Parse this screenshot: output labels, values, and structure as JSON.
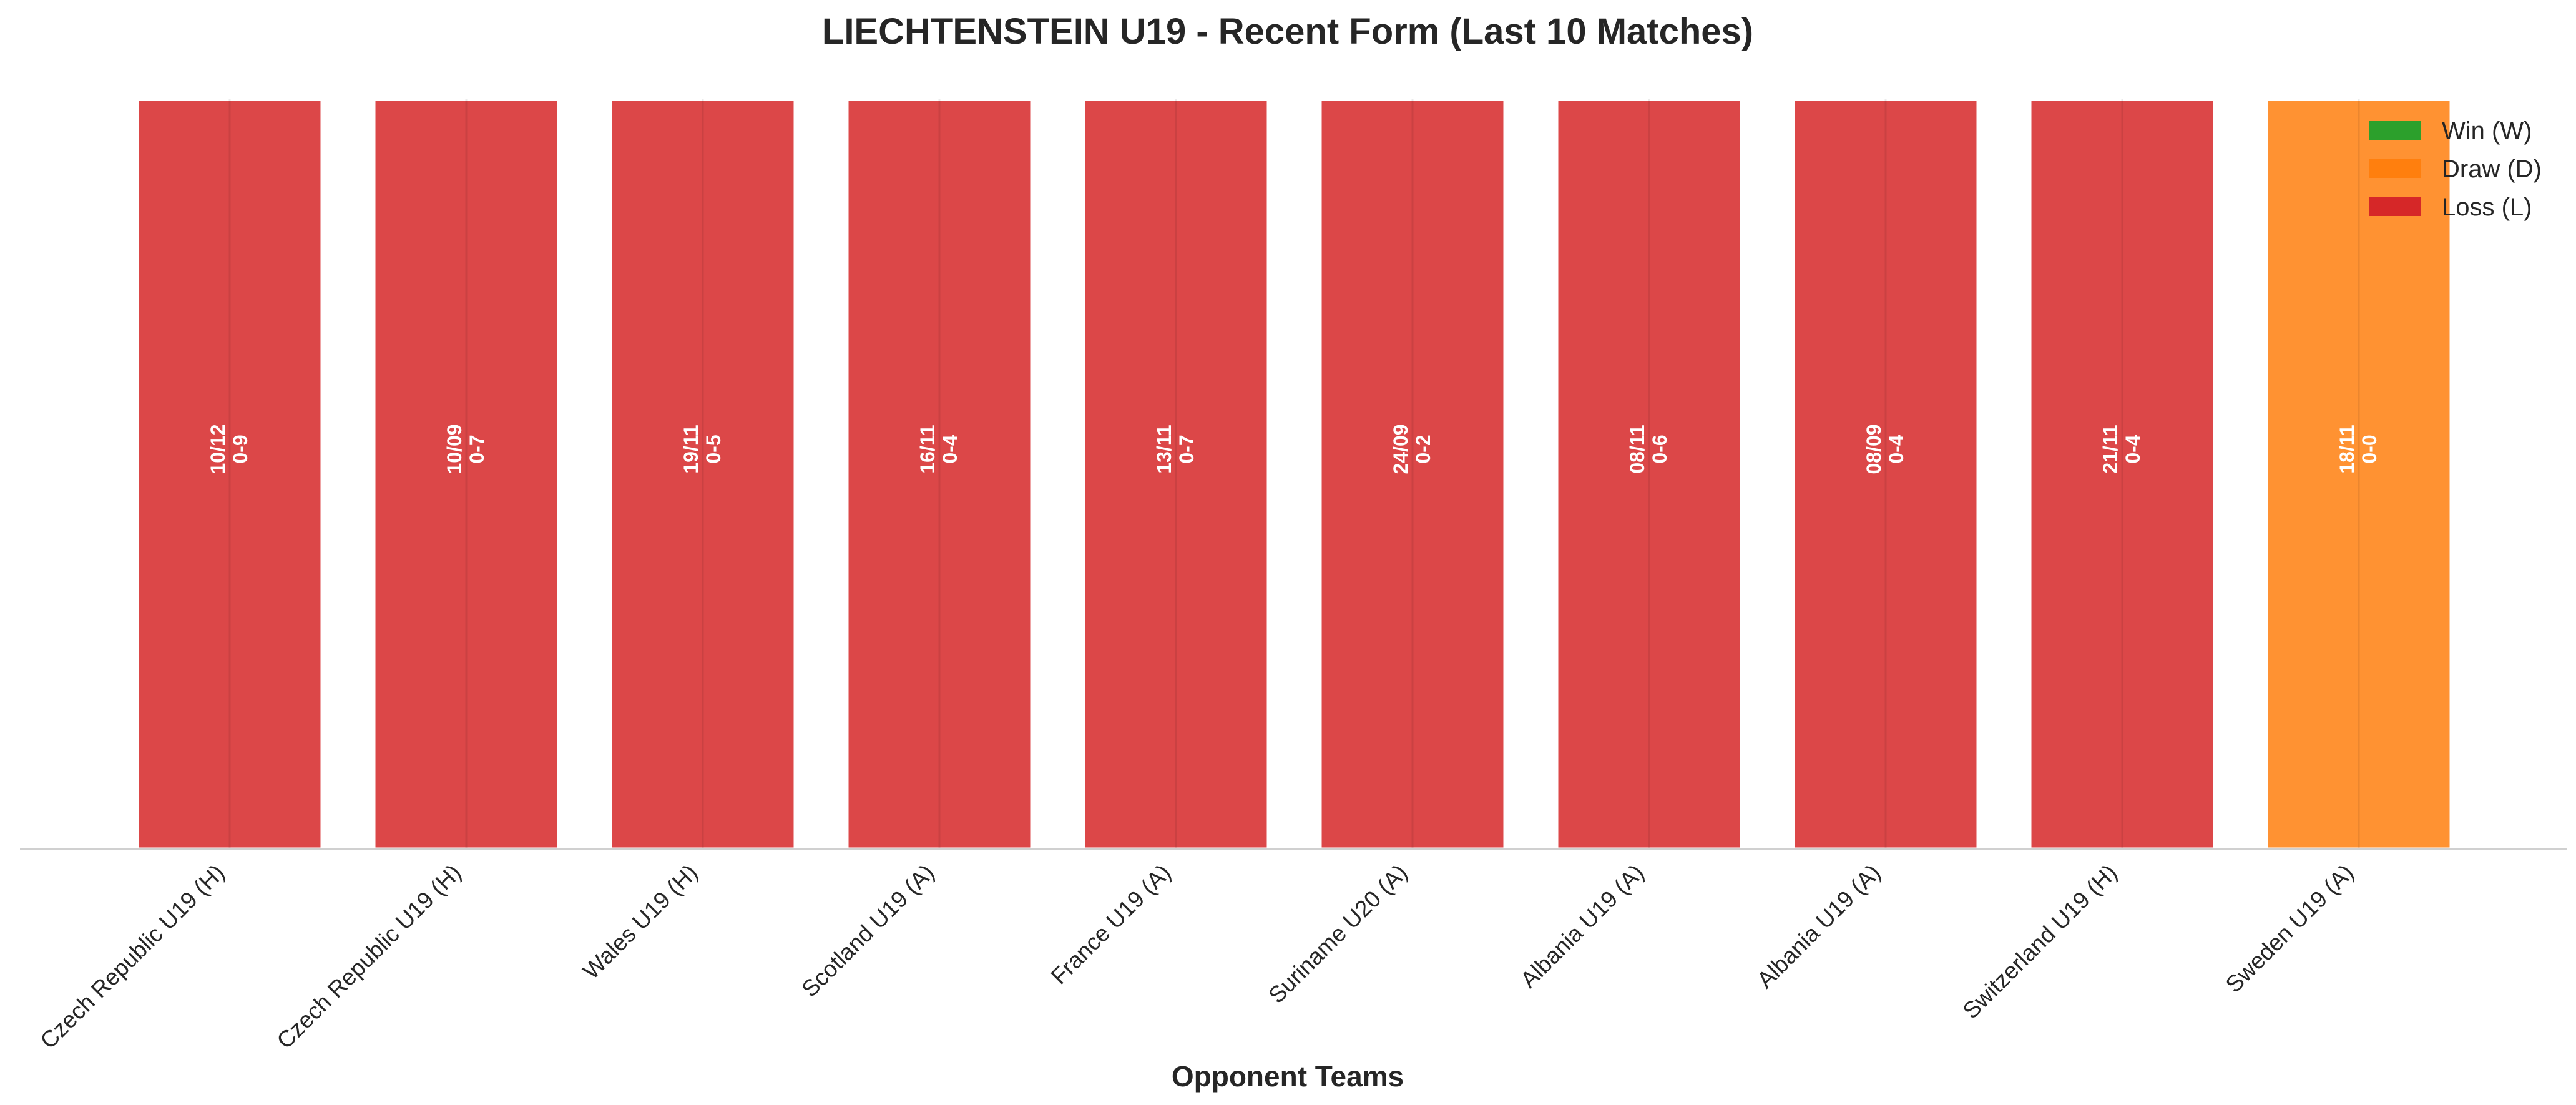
{
  "chart_data": {
    "type": "bar",
    "title": "LIECHTENSTEIN U19 - Recent Form (Last 10 Matches)",
    "x_label": "Opponent Teams",
    "categories": [
      "Czech Republic U19 (H)",
      "Czech Republic U19 (H)",
      "Wales U19 (H)",
      "Scotland U19 (A)",
      "France U19 (A)",
      "Suriname U20 (A)",
      "Albania U19 (A)",
      "Albania U19 (A)",
      "Switzerland U19 (H)",
      "Sweden U19 (A)"
    ],
    "values": [
      1,
      1,
      1,
      1,
      1,
      1,
      1,
      1,
      1,
      1
    ],
    "ylim": [
      0,
      1
    ],
    "colors": [
      "#d62728",
      "#d62728",
      "#d62728",
      "#d62728",
      "#d62728",
      "#d62728",
      "#d62728",
      "#d62728",
      "#d62728",
      "#ff7f0e"
    ],
    "annotations": [
      {
        "date": "10/12",
        "score": "0-9"
      },
      {
        "date": "10/09",
        "score": "0-7"
      },
      {
        "date": "19/11",
        "score": "0-5"
      },
      {
        "date": "16/11",
        "score": "0-4"
      },
      {
        "date": "13/11",
        "score": "0-7"
      },
      {
        "date": "24/09",
        "score": "0-2"
      },
      {
        "date": "08/11",
        "score": "0-6"
      },
      {
        "date": "08/09",
        "score": "0-4"
      },
      {
        "date": "21/11",
        "score": "0-4"
      },
      {
        "date": "18/11",
        "score": "0-0"
      }
    ],
    "legend": [
      {
        "name": "Win (W)",
        "color": "#2ca02c"
      },
      {
        "name": "Draw (D)",
        "color": "#ff7f0e"
      },
      {
        "name": "Loss (L)",
        "color": "#d62728"
      }
    ],
    "legend_position": "upper right"
  }
}
